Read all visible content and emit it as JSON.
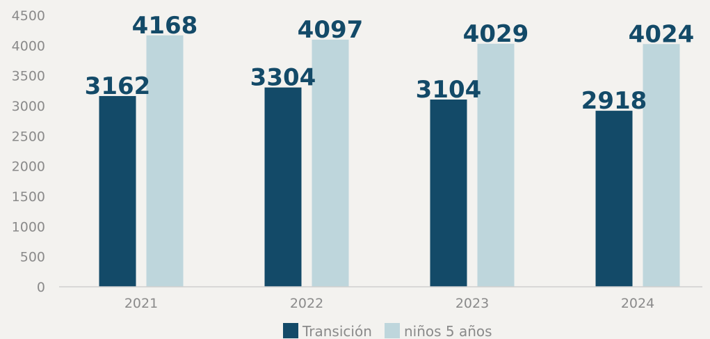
{
  "colors": {
    "series1": "#134a68",
    "series2": "#bed6dc",
    "axis": "#cfcfcf"
  },
  "chart_data": {
    "type": "bar",
    "categories": [
      "2021",
      "2022",
      "2023",
      "2024"
    ],
    "series": [
      {
        "name": "Transición",
        "values": [
          3162,
          3304,
          3104,
          2918
        ]
      },
      {
        "name": "niños 5 años",
        "values": [
          4168,
          4097,
          4029,
          4024
        ]
      }
    ],
    "ylim": [
      0,
      4500
    ],
    "yticks": [
      0,
      500,
      1000,
      1500,
      2000,
      2500,
      3000,
      3500,
      4000,
      4500
    ],
    "grid": false,
    "legend": "bottom",
    "data_labels": true
  }
}
